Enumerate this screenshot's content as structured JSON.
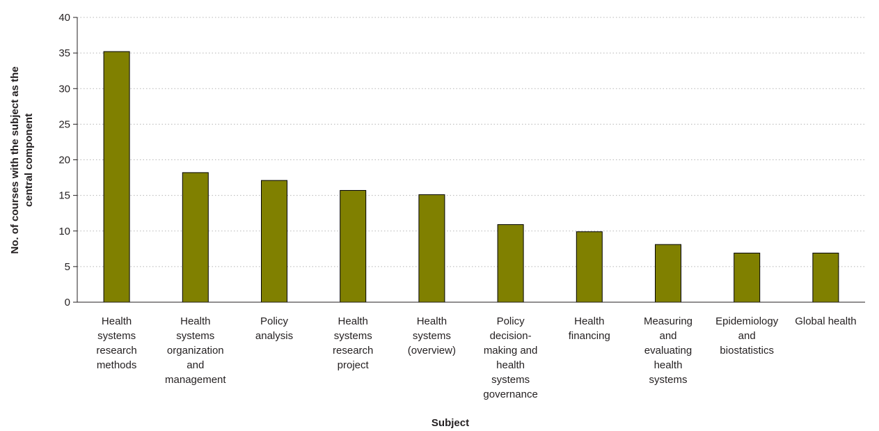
{
  "chart_data": {
    "type": "bar",
    "title": "",
    "xlabel": "Subject",
    "ylabel_lines": [
      "No. of courses with the subject as the",
      "central component"
    ],
    "ylim": [
      0,
      40
    ],
    "yticks": [
      0,
      5,
      10,
      15,
      20,
      25,
      30,
      35,
      40
    ],
    "grid": true,
    "bar_color": "#808000",
    "categories": [
      [
        "Health",
        "systems",
        "research",
        "methods"
      ],
      [
        "Health",
        "systems",
        "organization",
        "and",
        "management"
      ],
      [
        "Policy",
        "analysis"
      ],
      [
        "Health",
        "systems",
        "research",
        "project"
      ],
      [
        "Health",
        "systems",
        "(overview)"
      ],
      [
        "Policy",
        "decision-",
        "making and",
        "health",
        "systems",
        "governance"
      ],
      [
        "Health",
        "financing"
      ],
      [
        "Measuring",
        "and",
        "evaluating",
        "health",
        "systems"
      ],
      [
        "Epidemiology",
        "and",
        "biostatistics"
      ],
      [
        "Global health"
      ]
    ],
    "values": [
      35.2,
      18.2,
      17.1,
      15.7,
      15.1,
      10.9,
      9.9,
      8.1,
      6.9,
      6.9
    ]
  }
}
